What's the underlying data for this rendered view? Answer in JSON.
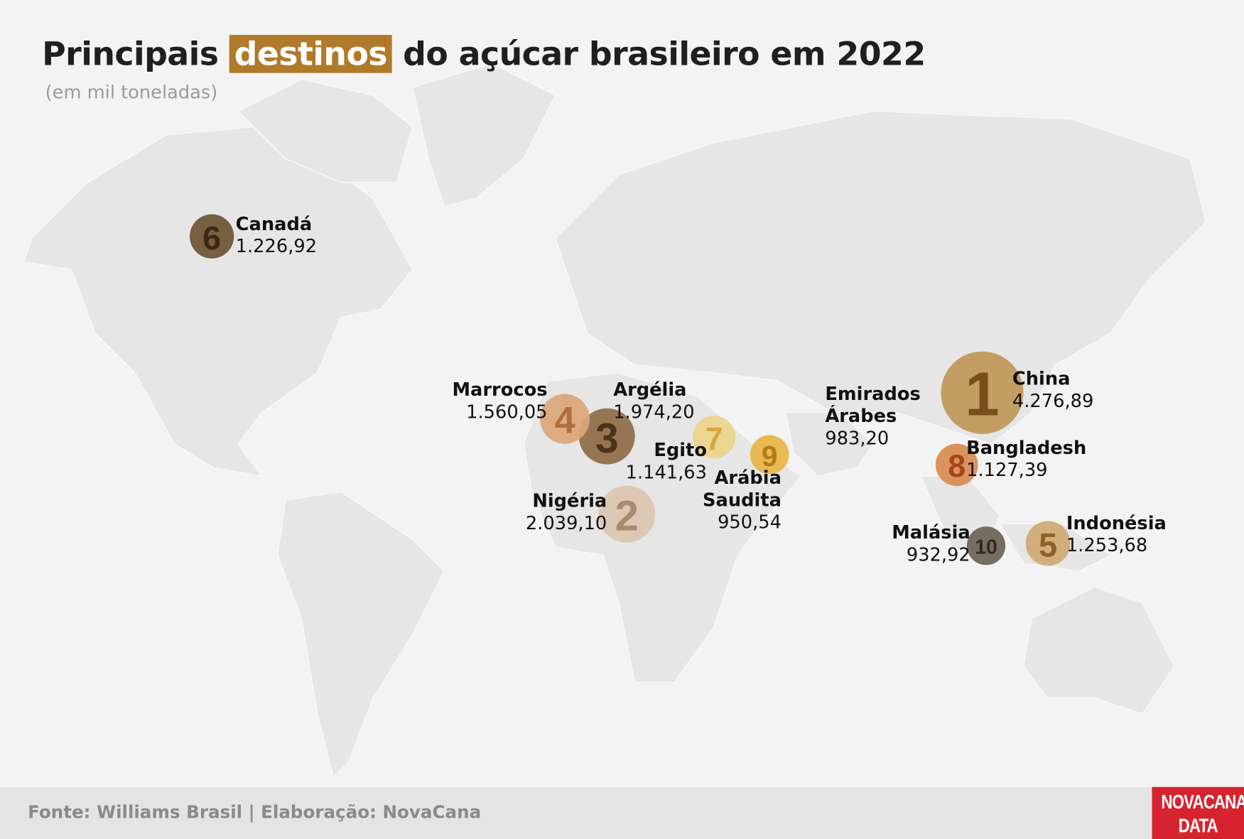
{
  "chart_data": {
    "type": "bubble-map",
    "title_before": "Principais",
    "title_highlight": "destinos",
    "title_after": "do açúcar brasileiro em 2022",
    "subtitle": "(em mil toneladas)",
    "source": "Fonte: Williams Brasil | Elaboração: NovaCana",
    "logo": [
      "NOVACANA",
      "DATA"
    ],
    "points": [
      {
        "name": "China",
        "rank": 1,
        "value": 4276.89,
        "value_label": "4.276,89",
        "color": "#c09858",
        "text_color": "#7a4e1a"
      },
      {
        "name": "Nigéria",
        "rank": 2,
        "value": 2039.1,
        "value_label": "2.039,10",
        "color": "#dcc6b2",
        "text_color": "#a88b70"
      },
      {
        "name": "Argélia",
        "rank": 3,
        "value": 1974.2,
        "value_label": "1.974,20",
        "color": "#8f6d45",
        "text_color": "#4d3418"
      },
      {
        "name": "Marrocos",
        "rank": 4,
        "value": 1560.05,
        "value_label": "1.560,05",
        "color": "#dca679",
        "text_color": "#b26e3a"
      },
      {
        "name": "Indonésia",
        "rank": 5,
        "value": 1253.68,
        "value_label": "1.253,68",
        "color": "#d1a974",
        "text_color": "#8e6128"
      },
      {
        "name": "Canadá",
        "rank": 6,
        "value": 1226.92,
        "value_label": "1.226,92",
        "color": "#6e5434",
        "text_color": "#3a2812"
      },
      {
        "name": "Egito",
        "rank": 7,
        "value": 1141.63,
        "value_label": "1.141,63",
        "color": "#edd38a",
        "text_color": "#d3a93a"
      },
      {
        "name": "Bangladesh",
        "rank": 8,
        "value": 1127.39,
        "value_label": "1.127,39",
        "color": "#d98b4f",
        "text_color": "#a6461a"
      },
      {
        "name": "Arábia Saudita",
        "rank": 9,
        "value": 950.54,
        "value_label": "950,54",
        "color": "#e8b445",
        "text_color": "#b37a15"
      },
      {
        "name": "Malásia",
        "rank": 10,
        "value": 932.92,
        "value_label": "932,92",
        "color": "#6c6254",
        "text_color": "#2e2a24"
      },
      {
        "name": "Emirados Árabes",
        "value": 983.2,
        "value_label": "983,20"
      }
    ]
  }
}
